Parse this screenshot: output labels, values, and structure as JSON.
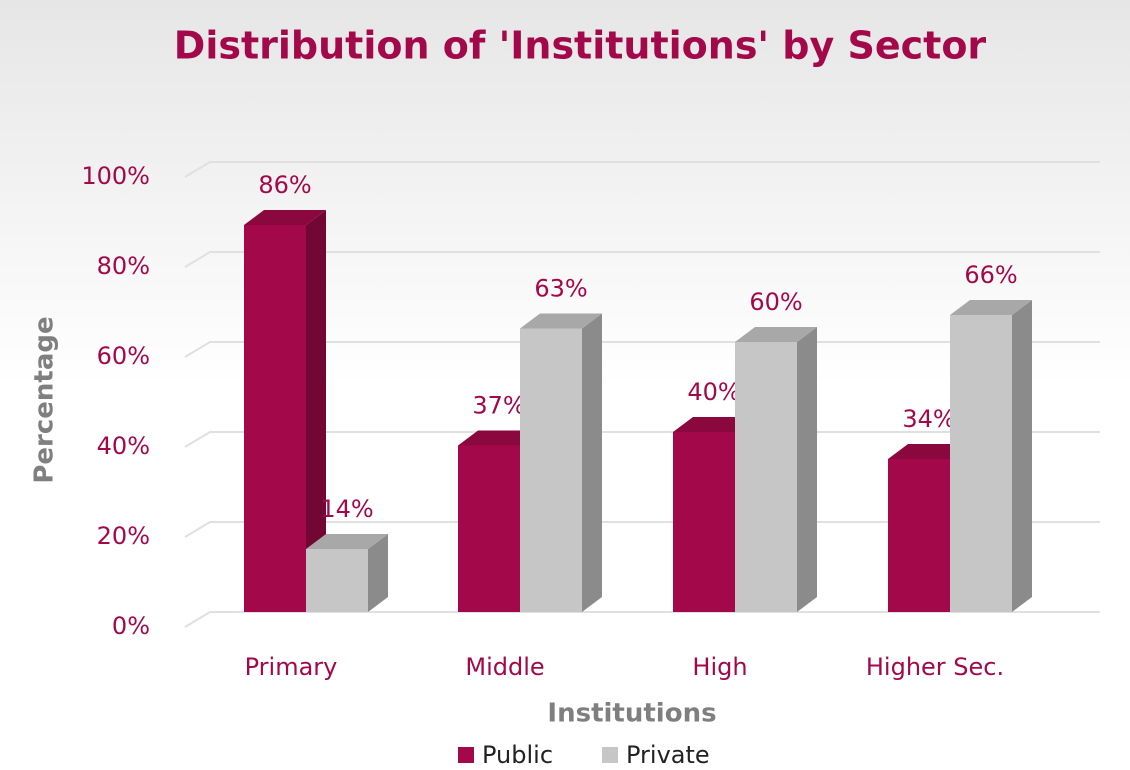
{
  "chart_data": {
    "type": "bar3d",
    "title": "Distribution of 'Institutions' by Sector",
    "x_label": "Institutions",
    "y_label": "Percentage",
    "categories": [
      "Primary",
      "Middle",
      "High",
      "Higher Sec."
    ],
    "series": [
      {
        "name": "Public",
        "color": "#a3094a",
        "values": [
          86,
          37,
          40,
          34
        ],
        "value_labels": [
          "86%",
          "37%",
          "40%",
          "34%"
        ]
      },
      {
        "name": "Private",
        "color": "#c6c6c6",
        "values": [
          14,
          63,
          60,
          66
        ],
        "value_labels": [
          "14%",
          "63%",
          "60%",
          "66%"
        ]
      }
    ],
    "ylim": [
      0,
      100
    ],
    "yticks": [
      {
        "value": 0,
        "label": "0%"
      },
      {
        "value": 20,
        "label": "20%"
      },
      {
        "value": 40,
        "label": "40%"
      },
      {
        "value": 60,
        "label": "60%"
      },
      {
        "value": 80,
        "label": "80%"
      },
      {
        "value": 100,
        "label": "100%"
      }
    ],
    "grid": true,
    "legend": "bottom"
  }
}
